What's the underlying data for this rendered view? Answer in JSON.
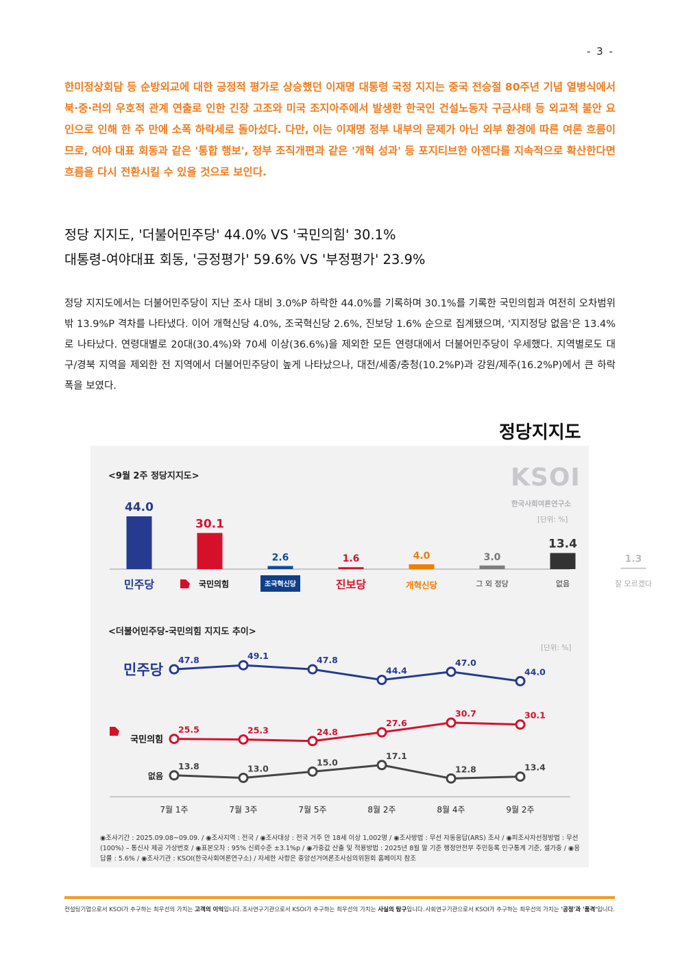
{
  "page_number": "- 3 -",
  "summary": "한미정상회담 등 순방외교에 대한 긍정적 평가로 상승했던 이재명 대통령 국정 지지는 중국 전승절 80주년 기념 열병식에서 북·중·러의 우호적 관계 연출로 인한 긴장 고조와 미국 조지아주에서 발생한 한국인 건설노동자 구금사태 등 외교적 불안 요인으로 인해 한 주 만에 소폭 하락세로 돌아섰다. 다만, 이는 이재명 정부 내부의 문제가 아닌 외부 환경에 따른 여론 흐름이므로, 여야 대표 회동과 같은 '통합 행보', 정부 조직개편과 같은 '개혁 성과' 등 포지티브한 아젠다를 지속적으로 확산한다면 흐름을 다시 전환시킬 수 있을 것으로 보인다.",
  "headline1": "정당 지지도, '더불어민주당' 44.0% VS '국민의힘' 30.1%",
  "headline2": "대통령-여야대표 회동, '긍정평가' 59.6% VS '부정평가' 23.9%",
  "body": "정당 지지도에서는 더불어민주당이 지난 조사 대비 3.0%P 하락한 44.0%를 기록하며 30.1%를 기록한 국민의힘과 여전히 오차범위 밖 13.9%P 격차를 나타냈다. 이어 개혁신당 4.0%, 조국혁신당 2.6%, 진보당 1.6% 순으로 집계됐으며, '지지정당 없음'은 13.4%로 나타났다. 연령대별로 20대(30.4%)와 70세 이상(36.6%)을 제외한 모든 연령대에서 더불어민주당이 우세했다. 지역별로도 대구/경북 지역을 제외한 전 지역에서 더불어민주당이 높게 나타났으나, 대전/세종/충청(10.2%P)과 강원/제주(16.2%P)에서 큰 하락 폭을 보였다.",
  "figure_title": "정당지지도",
  "logo": {
    "text": "KSOI",
    "subtitle": "한국사회여론연구소"
  },
  "bar_section_title": "<9월 2주 정당지지도>",
  "line_section_title": "<더불어민주당-국민의힘 지지도 추이>",
  "unit": "[단위: %]",
  "chart_data": [
    {
      "type": "bar",
      "title": "<9월 2주 정당지지도>",
      "categories": [
        "더불어민주당",
        "국민의힘",
        "조국혁신당",
        "진보당",
        "개혁신당",
        "그 외 정당",
        "없음",
        "잘 모르겠다"
      ],
      "category_display": [
        "민주당",
        "국민의힘",
        "조국혁신당",
        "진보당",
        "개혁신당",
        "그 외 정당",
        "없음",
        "잘 모르겠다"
      ],
      "values": [
        44.0,
        30.1,
        2.6,
        1.6,
        4.0,
        3.0,
        13.4,
        1.3
      ],
      "value_labels": [
        "44.0",
        "30.1",
        "2.6",
        "1.6",
        "4.0",
        "3.0",
        "13.4",
        "1.3"
      ],
      "colors": [
        "#263a8f",
        "#d7102a",
        "#0d4c9b",
        "#d6132b",
        "#f07d00",
        "#7d7d7d",
        "#333333",
        "#cfcfcf"
      ],
      "unit": "[단위: %]"
    },
    {
      "type": "line",
      "title": "<더불어민주당-국민의힘 지지도 추이>",
      "x": [
        "7월 1주",
        "7월 3주",
        "7월 5주",
        "8월 2주",
        "8월 4주",
        "9월 2주"
      ],
      "series": [
        {
          "name": "민주당",
          "color": "#263a8f",
          "values": [
            47.8,
            49.1,
            47.8,
            44.4,
            47.0,
            44.0
          ],
          "labels": [
            "47.8",
            "49.1",
            "47.8",
            "44.4",
            "47.0",
            "44.0"
          ]
        },
        {
          "name": "국민의힘",
          "color": "#d7102a",
          "values": [
            25.5,
            25.3,
            24.8,
            27.6,
            30.7,
            30.1
          ],
          "labels": [
            "25.5",
            "25.3",
            "24.8",
            "27.6",
            "30.7",
            "30.1"
          ]
        },
        {
          "name": "없음",
          "color": "#444444",
          "values": [
            13.8,
            13.0,
            15.0,
            17.1,
            12.8,
            13.4
          ],
          "labels": [
            "13.8",
            "13.0",
            "15.0",
            "17.1",
            "12.8",
            "13.4"
          ]
        }
      ],
      "unit": "[단위: %]"
    }
  ],
  "footnote": "◉조사기간 : 2025.09.08~09.09. / ◉조사지역 : 전국 / ◉조사대상 : 전국 거주 만 18세 이상 1,002명 / ◉조사방법 : 무선 자동응답(ARS) 조사 / ◉피조사자선정방법 : 무선(100%) – 통신사 제공 가상번호 / ◉표본오차 : 95% 신뢰수준 ±3.1%p / ◉가중값 산출 및 적용방법 : 2025년 8월 말 기준 행정안전부 주민등록 인구통계 기준, 셀가중 / ◉응답률 : 5.6% / ◉조사기관 : KSOI(한국사회여론연구소) / 자세한 사항은 중앙선거여론조사심의위원회 홈페이지 참조",
  "footer": [
    {
      "pre": "컨설팅기업으로서 KSOI가 추구하는 최우선의 가치는 ",
      "bold": "고객의 이익",
      "post": "입니다."
    },
    {
      "pre": "조사연구기관으로서 KSOI가 추구하는 최우선의 가치는 ",
      "bold": "사실의 탐구",
      "post": "입니다."
    },
    {
      "pre": "사회연구기관으로서 KSOI가 추구하는 최우선의 가치는 ",
      "bold": "'공정'과 '품격'",
      "post": "입니다."
    }
  ]
}
